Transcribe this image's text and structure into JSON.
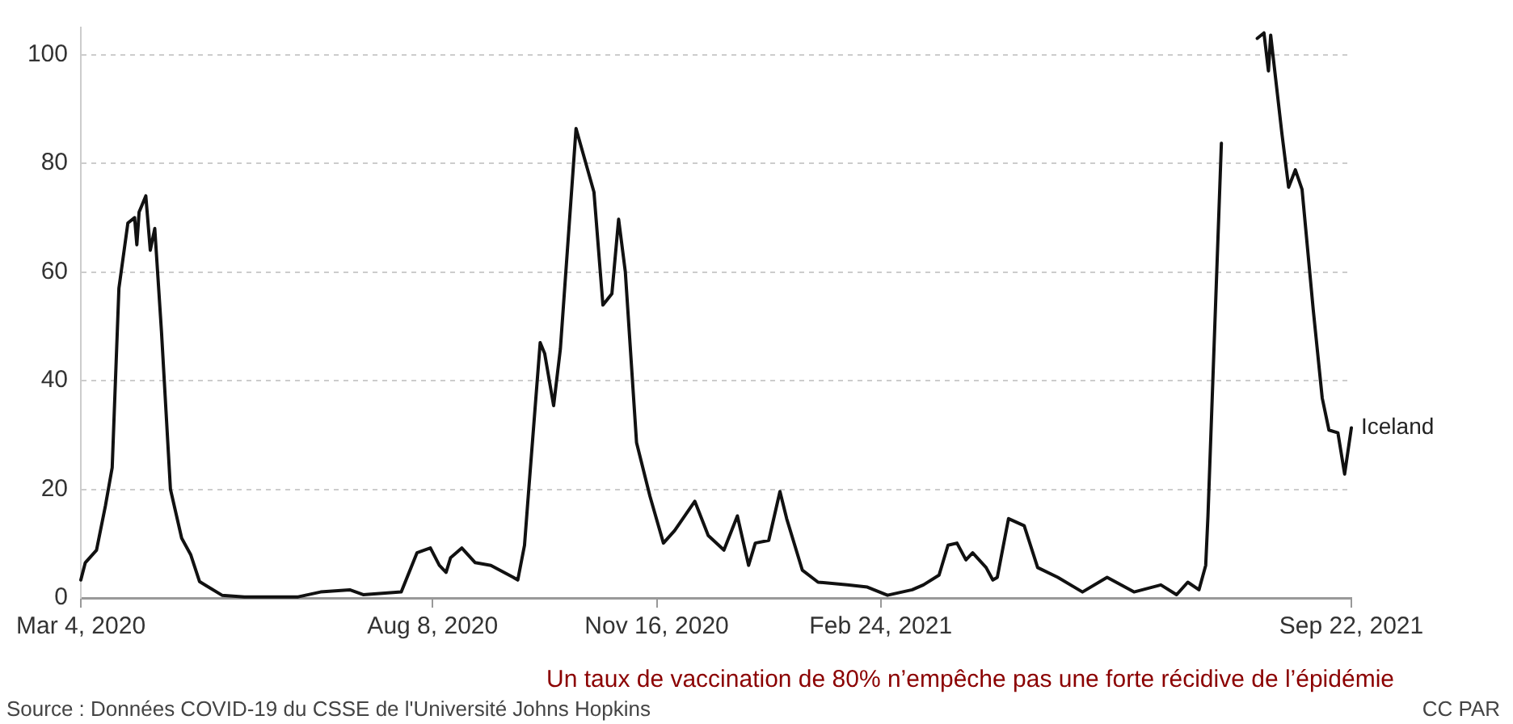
{
  "chart_data": {
    "type": "line",
    "x": [
      "2020-03-04",
      "2020-03-06",
      "2020-03-11",
      "2020-03-15",
      "2020-03-18",
      "2020-03-21",
      "2020-03-25",
      "2020-03-28",
      "2020-03-29",
      "2020-03-30",
      "2020-04-02",
      "2020-04-04",
      "2020-04-06",
      "2020-04-09",
      "2020-04-13",
      "2020-04-18",
      "2020-04-22",
      "2020-04-26",
      "2020-05-06",
      "2020-05-16",
      "2020-06-09",
      "2020-06-19",
      "2020-07-02",
      "2020-07-08",
      "2020-07-25",
      "2020-08-01",
      "2020-08-07",
      "2020-08-11",
      "2020-08-14",
      "2020-08-16",
      "2020-08-21",
      "2020-08-27",
      "2020-09-03",
      "2020-09-13",
      "2020-09-15",
      "2020-09-18",
      "2020-09-20",
      "2020-09-25",
      "2020-09-27",
      "2020-10-01",
      "2020-10-04",
      "2020-10-11",
      "2020-10-19",
      "2020-10-23",
      "2020-10-27",
      "2020-10-30",
      "2020-11-02",
      "2020-11-07",
      "2020-11-13",
      "2020-11-19",
      "2020-11-24",
      "2020-12-03",
      "2020-12-09",
      "2020-12-16",
      "2020-12-22",
      "2020-12-27",
      "2020-12-30",
      "2021-01-05",
      "2021-01-10",
      "2021-01-13",
      "2021-01-20",
      "2021-01-27",
      "2021-02-09",
      "2021-02-18",
      "2021-02-27",
      "2021-03-10",
      "2021-03-15",
      "2021-03-22",
      "2021-03-26",
      "2021-03-30",
      "2021-04-03",
      "2021-04-06",
      "2021-04-12",
      "2021-04-15",
      "2021-04-17",
      "2021-04-22",
      "2021-04-29",
      "2021-05-05",
      "2021-05-14",
      "2021-05-25",
      "2021-06-05",
      "2021-06-17",
      "2021-06-29",
      "2021-07-06",
      "2021-07-11",
      "2021-07-16",
      "2021-07-19",
      "2021-07-20",
      "2021-07-26",
      "2021-07-30",
      "2021-08-10",
      "2021-08-11",
      "2021-08-14",
      "2021-08-16",
      "2021-08-17",
      "2021-08-22",
      "2021-08-25",
      "2021-08-28",
      "2021-08-31",
      "2021-09-05",
      "2021-09-09",
      "2021-09-12",
      "2021-09-16",
      "2021-09-19",
      "2021-09-22"
    ],
    "series": [
      {
        "name": "Iceland",
        "color": "#111111",
        "values": [
          3.3,
          6.5,
          8.8,
          17,
          24,
          57,
          69,
          70,
          65,
          71,
          74,
          64,
          68,
          49,
          20,
          11,
          8,
          3,
          0.5,
          0.2,
          0.2,
          1.1,
          1.5,
          0.6,
          1.1,
          8.3,
          9.2,
          6,
          4.7,
          7.4,
          9.2,
          6.5,
          6,
          3.8,
          3.3,
          9.7,
          20.5,
          47,
          45,
          35.4,
          45.8,
          86.4,
          74.7,
          53.9,
          56,
          69.7,
          60,
          28.6,
          18.7,
          10.1,
          12.4,
          17.8,
          11.5,
          8.8,
          15.1,
          6,
          10.1,
          10.6,
          19.6,
          14.6,
          5.1,
          2.9,
          2.4,
          2,
          0.5,
          1.5,
          2.4,
          4.2,
          9.7,
          10.1,
          7,
          8.3,
          5.6,
          3.3,
          3.8,
          14.6,
          13.3,
          5.6,
          3.8,
          1.1,
          3.8,
          1.1,
          2.4,
          0.6,
          2.9,
          1.5,
          6,
          15,
          83.7,
          null,
          null,
          103,
          104,
          97,
          103.6,
          85.5,
          75.6,
          78.8,
          75.2,
          53,
          36.8,
          30.9,
          30.4,
          22.8,
          31.3
        ]
      }
    ],
    "xlim": [
      "2020-03-04",
      "2021-09-22"
    ],
    "xticks": [
      {
        "value": "2020-03-04",
        "label": "Mar 4, 2020"
      },
      {
        "value": "2020-08-08",
        "label": "Aug 8, 2020"
      },
      {
        "value": "2020-11-16",
        "label": "Nov 16, 2020"
      },
      {
        "value": "2021-02-24",
        "label": "Feb 24, 2021"
      },
      {
        "value": "2021-09-22",
        "label": "Sep 22, 2021"
      }
    ],
    "ylim": [
      0,
      105
    ],
    "yticks": [
      0,
      20,
      40,
      60,
      80,
      100
    ],
    "grid": "y",
    "marker": "none",
    "line_style": "solid",
    "annotations": [
      "Un taux de vaccination de 80% n’empêche pas une forte récidive de l’épidémie",
      "Source : Données COVID-19 du CSSE de l'Université Johns Hopkins",
      "CC PAR"
    ]
  }
}
